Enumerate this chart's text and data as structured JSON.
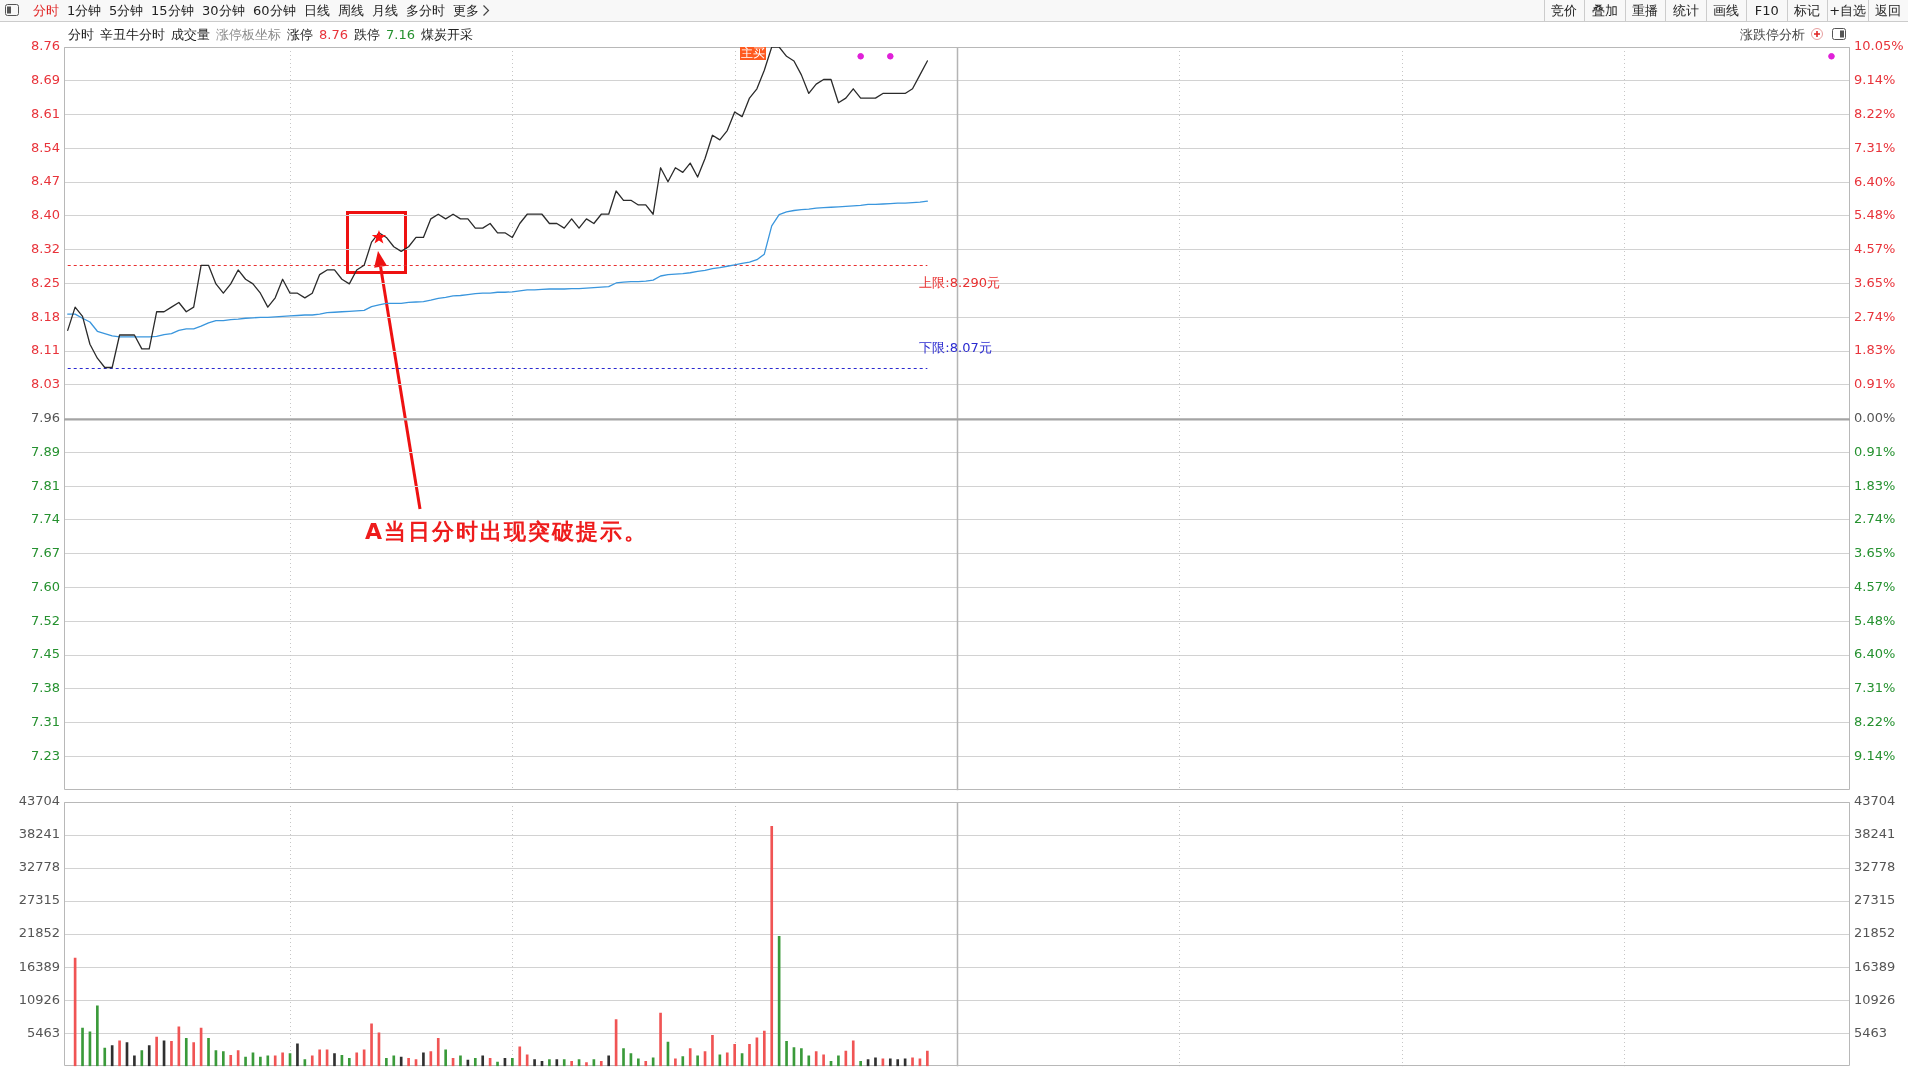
{
  "chart_data": [
    {
      "type": "other",
      "annotations": [
        "分时",
        "1分钟",
        "5分钟",
        "15分钟",
        "30分钟",
        "60分钟",
        "日线",
        "周线",
        "月线",
        "多分时",
        "更多"
      ]
    },
    {
      "type": "other",
      "annotations": [
        "竞价",
        "叠加",
        "重播",
        "统计",
        "画线",
        "F10",
        "标记",
        "+自选",
        "返回"
      ]
    },
    {
      "type": "other",
      "annotations": [
        "分时",
        "辛丑牛分时",
        "成交量",
        "涨停板坐标",
        "涨停",
        "8.76",
        "跌停",
        "7.16",
        "煤炭开采",
        "涨跌停分析"
      ]
    },
    {
      "type": "line",
      "categories": [
        null,
        null,
        null,
        null,
        null,
        null,
        null,
        null,
        null,
        null,
        null,
        null,
        null,
        null,
        null,
        null,
        null,
        null,
        null,
        null,
        null,
        null,
        null,
        null,
        null,
        null,
        null,
        null,
        null,
        null,
        null,
        null,
        null,
        null,
        null,
        null,
        null,
        null,
        null,
        null,
        null,
        null,
        null,
        null,
        null,
        null,
        null,
        null,
        null,
        null,
        null,
        null,
        null,
        null,
        null,
        null,
        null,
        null,
        null,
        null,
        null,
        null,
        null,
        null,
        null,
        null,
        null,
        null,
        null,
        null,
        null,
        null,
        null,
        null,
        null,
        null,
        null,
        null,
        null,
        null,
        null,
        null,
        null,
        null,
        null,
        null,
        null,
        null,
        null,
        null,
        null,
        null,
        null,
        null,
        null,
        null,
        null,
        null,
        null,
        null,
        null,
        null,
        null,
        null,
        null,
        null,
        null,
        null,
        null,
        null,
        null,
        null,
        null,
        null,
        null,
        null,
        null,
        null,
        null,
        null,
        null,
        null,
        null,
        null,
        null,
        null,
        null,
        null,
        null,
        null,
        null,
        null,
        null,
        null,
        null,
        null,
        null,
        null,
        null,
        null,
        null,
        null,
        null,
        null,
        null,
        null,
        null,
        null,
        null,
        null,
        null,
        null,
        null,
        null,
        null,
        null,
        null,
        null,
        null,
        null,
        null,
        null,
        null,
        null,
        null,
        null,
        null,
        null,
        null,
        null,
        null,
        null,
        null,
        null,
        null,
        null,
        null,
        null,
        null,
        null,
        null,
        null,
        null,
        null,
        null,
        null,
        null,
        null,
        null,
        null,
        null,
        null,
        null,
        null,
        null,
        null,
        null,
        null,
        null,
        null,
        null,
        null,
        null,
        null,
        null,
        null,
        null,
        null,
        null,
        null,
        null,
        null,
        null,
        null,
        null,
        null,
        null,
        null,
        null,
        null,
        null,
        null,
        null,
        null,
        null,
        null,
        null,
        null,
        null,
        null,
        null,
        null,
        null,
        null,
        null,
        null,
        null,
        null,
        null,
        null,
        null
      ],
      "series": [
        {
          "color": "#2b2b2b",
          "values": [
            8.15,
            8.2,
            8.18,
            8.12,
            8.09,
            8.07,
            8.07,
            8.14,
            8.14,
            8.14,
            8.11,
            8.11,
            8.19,
            8.19,
            8.2,
            8.21,
            8.19,
            8.2,
            8.29,
            8.29,
            8.25,
            8.23,
            8.25,
            8.28,
            8.26,
            8.25,
            8.23,
            8.2,
            8.22,
            8.26,
            8.23,
            8.23,
            8.22,
            8.23,
            8.27,
            8.28,
            8.28,
            8.26,
            8.25,
            8.28,
            8.29,
            8.34,
            8.36,
            8.35,
            8.33,
            8.32,
            8.33,
            8.35,
            8.35,
            8.39,
            8.4,
            8.39,
            8.4,
            8.39,
            8.39,
            8.37,
            8.37,
            8.38,
            8.36,
            8.36,
            8.35,
            8.38,
            8.4,
            8.4,
            8.4,
            8.38,
            8.38,
            8.37,
            8.39,
            8.37,
            8.39,
            8.38,
            8.4,
            8.4,
            8.45,
            8.43,
            8.43,
            8.42,
            8.42,
            8.4,
            8.5,
            8.47,
            8.5,
            8.49,
            8.51,
            8.48,
            8.52,
            8.57,
            8.56,
            8.58,
            8.62,
            8.61,
            8.65,
            8.67,
            8.71,
            8.76,
            8.76,
            8.74,
            8.73,
            8.7,
            8.66,
            8.68,
            8.69,
            8.69,
            8.64,
            8.65,
            8.67,
            8.65,
            8.65,
            8.65,
            8.66,
            8.66,
            8.66,
            8.66,
            8.67,
            8.7,
            8.73,
            null,
            null,
            null,
            null,
            null,
            null,
            null,
            null,
            null,
            null,
            null,
            null,
            null,
            null,
            null,
            null,
            null,
            null,
            null,
            null,
            null,
            null,
            null,
            null,
            null,
            null,
            null,
            null,
            null,
            null,
            null,
            null,
            null,
            null,
            null,
            null,
            null,
            null,
            null,
            null,
            null,
            null,
            null,
            null,
            null,
            null,
            null,
            null,
            null,
            null,
            null,
            null,
            null,
            null,
            null,
            null,
            null,
            null,
            null,
            null,
            null,
            null,
            null,
            null,
            null,
            null,
            null,
            null,
            null,
            null,
            null,
            null,
            null,
            null,
            null,
            null,
            null,
            null,
            null,
            null,
            null,
            null,
            null,
            null,
            null,
            null,
            null,
            null,
            null,
            null,
            null,
            null,
            null,
            null,
            null,
            null,
            null,
            null,
            null,
            null,
            null,
            null,
            null,
            null,
            null,
            null,
            null,
            null,
            null,
            null,
            null,
            null,
            null,
            null,
            null,
            null,
            null,
            null,
            null,
            null,
            null,
            null,
            null,
            null
          ]
        },
        {
          "color": "#3a96dd",
          "values": [
            8.185,
            8.185,
            8.176,
            8.168,
            8.148,
            8.143,
            8.138,
            8.136,
            8.136,
            8.136,
            8.136,
            8.136,
            8.137,
            8.141,
            8.143,
            8.15,
            8.153,
            8.153,
            8.159,
            8.166,
            8.171,
            8.171,
            8.173,
            8.174,
            8.176,
            8.177,
            8.178,
            8.178,
            8.179,
            8.18,
            8.181,
            8.182,
            8.183,
            8.183,
            8.185,
            8.188,
            8.189,
            8.19,
            8.191,
            8.192,
            8.193,
            8.201,
            8.205,
            8.208,
            8.208,
            8.208,
            8.21,
            8.211,
            8.212,
            8.215,
            8.219,
            8.221,
            8.224,
            8.225,
            8.227,
            8.229,
            8.23,
            8.23,
            8.232,
            8.232,
            8.233,
            8.235,
            8.237,
            8.237,
            8.238,
            8.239,
            8.239,
            8.239,
            8.24,
            8.24,
            8.241,
            8.242,
            8.243,
            8.244,
            8.252,
            8.254,
            8.255,
            8.255,
            8.256,
            8.258,
            8.267,
            8.27,
            8.271,
            8.272,
            8.274,
            8.277,
            8.279,
            8.283,
            8.285,
            8.288,
            8.291,
            8.294,
            8.297,
            8.302,
            8.314,
            8.375,
            8.399,
            8.405,
            8.408,
            8.41,
            8.411,
            8.413,
            8.414,
            8.415,
            8.416,
            8.417,
            8.418,
            8.419,
            8.421,
            8.421,
            8.422,
            8.423,
            8.424,
            8.424,
            8.425,
            8.426,
            8.428,
            null,
            null,
            null,
            null,
            null,
            null,
            null,
            null,
            null,
            null,
            null,
            null,
            null,
            null,
            null,
            null,
            null,
            null,
            null,
            null,
            null,
            null,
            null,
            null,
            null,
            null,
            null,
            null,
            null,
            null,
            null,
            null,
            null,
            null,
            null,
            null,
            null,
            null,
            null,
            null,
            null,
            null,
            null,
            null,
            null,
            null,
            null,
            null,
            null,
            null,
            null,
            null,
            null,
            null,
            null,
            null,
            null,
            null,
            null,
            null,
            null,
            null,
            null,
            null,
            null,
            null,
            null,
            null,
            null,
            null,
            null,
            null,
            null,
            null,
            null,
            null,
            null,
            null,
            null,
            null,
            null,
            null,
            null,
            null,
            null,
            null,
            null,
            null,
            null,
            null,
            null,
            null,
            null,
            null,
            null,
            null,
            null,
            null,
            null,
            null,
            null,
            null,
            null,
            null,
            null,
            null,
            null,
            null,
            null,
            null,
            null,
            null,
            null,
            null,
            null,
            null,
            null,
            null,
            null,
            null,
            null,
            null,
            null,
            null
          ]
        },
        {
          "type": "scatter",
          "marker": "star",
          "color": "#ff1010",
          "values": [
            null,
            null,
            null,
            null,
            null,
            null,
            null,
            null,
            null,
            null,
            null,
            null,
            null,
            null,
            null,
            null,
            null,
            null,
            null,
            null,
            null,
            null,
            null,
            null,
            null,
            null,
            null,
            null,
            null,
            null,
            null,
            null,
            null,
            null,
            null,
            null,
            null,
            null,
            null,
            null,
            null,
            null,
            8.35,
            null,
            null,
            null,
            null,
            null,
            null,
            null,
            null,
            null,
            null,
            null,
            null,
            null,
            null,
            null,
            null,
            null,
            null,
            null,
            null,
            null,
            null,
            null,
            null,
            null,
            null,
            null,
            null,
            null,
            null,
            null,
            null,
            null,
            null,
            null,
            null,
            null,
            null,
            null,
            null,
            null,
            null,
            null,
            null,
            null,
            null,
            null,
            null,
            null,
            null,
            null,
            null,
            null,
            null,
            null,
            null,
            null,
            null,
            null,
            null,
            null,
            null,
            null,
            null,
            null,
            null,
            null,
            null,
            null,
            null,
            null,
            null,
            null,
            null,
            null,
            null,
            null,
            null,
            null,
            null,
            null,
            null,
            null,
            null,
            null,
            null,
            null,
            null,
            null,
            null,
            null,
            null,
            null,
            null,
            null,
            null,
            null,
            null,
            null,
            null,
            null,
            null,
            null,
            null,
            null,
            null,
            null,
            null,
            null,
            null,
            null,
            null,
            null,
            null,
            null,
            null,
            null,
            null,
            null,
            null,
            null,
            null,
            null,
            null,
            null,
            null,
            null,
            null,
            null,
            null,
            null,
            null,
            null,
            null,
            null,
            null,
            null,
            null,
            null,
            null,
            null,
            null,
            null,
            null,
            null,
            null,
            null,
            null,
            null,
            null,
            null,
            null,
            null,
            null,
            null,
            null,
            null,
            null,
            null,
            null,
            null,
            null,
            null,
            null,
            null,
            null,
            null,
            null,
            null,
            null,
            null,
            null,
            null,
            null,
            null,
            null,
            null,
            null,
            null,
            null,
            null,
            null,
            null,
            null,
            null,
            null,
            null,
            null,
            null,
            null,
            null,
            null,
            null,
            null,
            null,
            null,
            null,
            null
          ]
        },
        {
          "type": "scatter",
          "marker": "circle",
          "color": "#e020d8",
          "values": [
            null,
            null,
            null,
            null,
            null,
            null,
            null,
            null,
            null,
            null,
            null,
            null,
            null,
            null,
            null,
            null,
            null,
            null,
            null,
            null,
            null,
            null,
            null,
            null,
            null,
            null,
            null,
            null,
            null,
            null,
            null,
            null,
            null,
            null,
            null,
            null,
            null,
            null,
            null,
            null,
            null,
            null,
            null,
            null,
            null,
            null,
            null,
            null,
            null,
            null,
            null,
            null,
            null,
            null,
            null,
            null,
            null,
            null,
            null,
            null,
            null,
            null,
            null,
            null,
            null,
            null,
            null,
            null,
            null,
            null,
            null,
            null,
            null,
            null,
            null,
            null,
            null,
            null,
            null,
            null,
            null,
            null,
            null,
            null,
            null,
            null,
            null,
            null,
            null,
            null,
            null,
            null,
            null,
            null,
            null,
            null,
            null,
            null,
            null,
            null,
            null,
            null,
            null,
            null,
            null,
            null,
            null,
            8.74,
            null,
            null,
            null,
            8.74,
            null,
            null,
            null,
            null,
            null,
            null,
            null,
            null,
            null,
            null,
            null,
            null,
            null,
            null,
            null,
            null,
            null,
            null,
            null,
            null,
            null,
            null,
            null,
            null,
            null,
            null,
            null,
            null,
            null,
            null,
            null,
            null,
            null,
            null,
            null,
            null,
            null,
            null,
            null,
            null,
            null,
            null,
            null,
            null,
            null,
            null,
            null,
            null,
            null,
            null,
            null,
            null,
            null,
            null,
            null,
            null,
            null,
            null,
            null,
            null,
            null,
            null,
            null,
            null,
            null,
            null,
            null,
            null,
            null,
            null,
            null,
            null,
            null,
            null,
            null,
            null,
            null,
            null,
            null,
            null,
            null,
            null,
            null,
            null,
            null,
            null,
            null,
            null,
            null,
            null,
            null,
            null,
            null,
            null,
            null,
            null,
            null,
            null,
            null,
            null,
            null,
            null,
            null,
            null,
            null,
            null,
            null,
            null,
            null,
            null,
            null,
            null,
            null,
            null,
            null,
            null,
            null,
            null,
            null,
            null,
            null,
            null,
            null,
            null,
            null,
            null,
            8.74,
            null,
            null
          ]
        }
      ],
      "ylim": [
        7.16,
        8.76
      ],
      "yticks": [
        8.76,
        {
          "value": 8.6873,
          "label": "8.69"
        },
        {
          "value": 8.6145,
          "label": "8.61"
        },
        {
          "value": 8.5418,
          "label": "8.54"
        },
        {
          "value": 8.4691,
          "label": "8.47"
        },
        {
          "value": 8.3964,
          "label": "8.40"
        },
        {
          "value": 8.3236,
          "label": "8.32"
        },
        {
          "value": 8.2509,
          "label": "8.25"
        },
        {
          "value": 8.1782,
          "label": "8.18"
        },
        {
          "value": 8.1055,
          "label": "8.11"
        },
        {
          "value": 8.0327,
          "label": "8.03"
        },
        7.96,
        {
          "value": 7.8873,
          "label": "7.89"
        },
        {
          "value": 7.8145,
          "label": "7.81"
        },
        {
          "value": 7.7418,
          "label": "7.74"
        },
        {
          "value": 7.6691,
          "label": "7.67"
        },
        {
          "value": 7.5964,
          "label": "7.60"
        },
        {
          "value": 7.5236,
          "label": "7.52"
        },
        {
          "value": 7.4509,
          "label": "7.45"
        },
        {
          "value": 7.3782,
          "label": "7.38"
        },
        {
          "value": 7.3055,
          "label": "7.31"
        },
        {
          "value": 7.2327,
          "label": "7.23"
        }
      ],
      "y2lim": [
        -10.05,
        10.05
      ],
      "y2ticks": [
        {
          "value": 10.05,
          "label": "10.05%"
        },
        {
          "value": 9.1364,
          "label": "9.14%"
        },
        {
          "value": 8.2227,
          "label": "8.22%"
        },
        {
          "value": 7.3091,
          "label": "7.31%"
        },
        {
          "value": 6.3955,
          "label": "6.40%"
        },
        {
          "value": 5.4818,
          "label": "5.48%"
        },
        {
          "value": 4.5682,
          "label": "4.57%"
        },
        {
          "value": 3.6545,
          "label": "3.65%"
        },
        {
          "value": 2.7409,
          "label": "2.74%"
        },
        {
          "value": 1.8273,
          "label": "1.83%"
        },
        {
          "value": 0.9136,
          "label": "0.91%"
        },
        {
          "value": 0,
          "label": "0.00%"
        },
        {
          "value": -0.9136,
          "label": "0.91%"
        },
        {
          "value": -1.8273,
          "label": "1.83%"
        },
        {
          "value": -2.7409,
          "label": "2.74%"
        },
        {
          "value": -3.6545,
          "label": "3.65%"
        },
        {
          "value": -4.5682,
          "label": "4.57%"
        },
        {
          "value": -5.4818,
          "label": "5.48%"
        },
        {
          "value": -6.3955,
          "label": "6.40%"
        },
        {
          "value": -7.3091,
          "label": "7.31%"
        },
        {
          "value": -8.2227,
          "label": "8.22%"
        },
        {
          "value": -9.1364,
          "label": "9.14%"
        }
      ],
      "ref_lines": [
        {
          "axis": "y",
          "value": 8.29,
          "label": "上限:8.290元",
          "color": "#e83030",
          "line_style": "dashed"
        },
        {
          "axis": "y",
          "value": 8.07,
          "label": "下限:8.07元",
          "color": "#2a2ad0",
          "line_style": "dashed"
        },
        {
          "axis": "y",
          "value": 7.96,
          "color": "#a4a4a4"
        }
      ],
      "annotations": [
        "A当日分时出现突破提示。",
        "主买"
      ],
      "grid": true
    },
    {
      "type": "bar",
      "categories": [
        null,
        null,
        null,
        null,
        null,
        null,
        null,
        null,
        null,
        null,
        null,
        null,
        null,
        null,
        null,
        null,
        null,
        null,
        null,
        null,
        null,
        null,
        null,
        null,
        null,
        null,
        null,
        null,
        null,
        null,
        null,
        null,
        null,
        null,
        null,
        null,
        null,
        null,
        null,
        null,
        null,
        null,
        null,
        null,
        null,
        null,
        null,
        null,
        null,
        null,
        null,
        null,
        null,
        null,
        null,
        null,
        null,
        null,
        null,
        null,
        null,
        null,
        null,
        null,
        null,
        null,
        null,
        null,
        null,
        null,
        null,
        null,
        null,
        null,
        null,
        null,
        null,
        null,
        null,
        null,
        null,
        null,
        null,
        null,
        null,
        null,
        null,
        null,
        null,
        null,
        null,
        null,
        null,
        null,
        null,
        null,
        null,
        null,
        null,
        null,
        null,
        null,
        null,
        null,
        null,
        null,
        null,
        null,
        null,
        null,
        null,
        null,
        null,
        null,
        null,
        null,
        null,
        null,
        null,
        null,
        null,
        null,
        null,
        null,
        null,
        null,
        null,
        null,
        null,
        null,
        null,
        null,
        null,
        null,
        null,
        null,
        null,
        null,
        null,
        null,
        null,
        null,
        null,
        null,
        null,
        null,
        null,
        null,
        null,
        null,
        null,
        null,
        null,
        null,
        null,
        null,
        null,
        null,
        null,
        null,
        null,
        null,
        null,
        null,
        null,
        null,
        null,
        null,
        null,
        null,
        null,
        null,
        null,
        null,
        null,
        null,
        null,
        null,
        null,
        null,
        null,
        null,
        null,
        null,
        null,
        null,
        null,
        null,
        null,
        null,
        null,
        null,
        null,
        null,
        null,
        null,
        null,
        null,
        null,
        null,
        null,
        null,
        null,
        null,
        null,
        null,
        null,
        null,
        null,
        null,
        null,
        null,
        null,
        null,
        null,
        null,
        null,
        null,
        null,
        null,
        null,
        null,
        null,
        null,
        null,
        null,
        null,
        null,
        null,
        null,
        null,
        null,
        null,
        null,
        null,
        null,
        null,
        null,
        null,
        null,
        null
      ],
      "values": [
        null,
        17900,
        6300,
        5700,
        10000,
        3000,
        3400,
        4200,
        3900,
        1700,
        2600,
        3400,
        4800,
        4200,
        4100,
        6500,
        4600,
        3900,
        6300,
        4600,
        2600,
        2400,
        1800,
        2600,
        1500,
        2200,
        1500,
        1700,
        1700,
        2200,
        2100,
        3700,
        1100,
        1700,
        2700,
        2700,
        2100,
        1800,
        1300,
        2200,
        2700,
        7000,
        5500,
        1300,
        1700,
        1500,
        1300,
        1100,
        2200,
        2400,
        4600,
        2700,
        1300,
        1700,
        1000,
        1300,
        1700,
        1300,
        700,
        1300,
        1300,
        3200,
        1900,
        1100,
        800,
        1100,
        1100,
        1100,
        800,
        1100,
        600,
        1100,
        800,
        1700,
        7700,
        2900,
        2100,
        1200,
        800,
        1400,
        8800,
        4000,
        1200,
        1600,
        2900,
        1700,
        2400,
        5100,
        1900,
        2200,
        3600,
        2100,
        3600,
        4700,
        5800,
        39700,
        21500,
        4100,
        3100,
        2900,
        1700,
        2400,
        1900,
        800,
        1700,
        2500,
        4200,
        800,
        1100,
        1400,
        1200,
        1200,
        1100,
        1200,
        1400,
        1200,
        2500,
        null,
        null,
        null,
        null,
        null,
        null,
        null,
        null,
        null,
        null,
        null,
        null,
        null,
        null,
        null,
        null,
        null,
        null,
        null,
        null,
        null,
        null,
        null,
        null,
        null,
        null,
        null,
        null,
        null,
        null,
        null,
        null,
        null,
        null,
        null,
        null,
        null,
        null,
        null,
        null,
        null,
        null,
        null,
        null,
        null,
        null,
        null,
        null,
        null,
        null,
        null,
        null,
        null,
        null,
        null,
        null,
        null,
        null,
        null,
        null,
        null,
        null,
        null,
        null,
        null,
        null,
        null,
        null,
        null,
        null,
        null,
        null,
        null,
        null,
        null,
        null,
        null,
        null,
        null,
        null,
        null,
        null,
        null,
        null,
        null,
        null,
        null,
        null,
        null,
        null,
        null,
        null,
        null,
        null,
        null,
        null,
        null,
        null,
        null,
        null,
        null,
        null,
        null,
        null,
        null,
        null,
        null,
        null,
        null,
        null,
        null,
        null,
        null,
        null,
        null,
        null,
        null,
        null,
        null,
        null,
        null,
        null,
        null,
        null
      ],
      "colors": [
        null,
        "#f05454",
        "#3a9a3a",
        "#3a9a3a",
        "#3a9a3a",
        "#3a9a3a",
        "#303030",
        "#f05454",
        "#303030",
        "#303030",
        "#3a9a3a",
        "#303030",
        "#f05454",
        "#303030",
        "#f05454",
        "#f05454",
        "#3a9a3a",
        "#f05454",
        "#f05454",
        "#3a9a3a",
        "#3a9a3a",
        "#3a9a3a",
        "#f05454",
        "#f05454",
        "#3a9a3a",
        "#3a9a3a",
        "#3a9a3a",
        "#3a9a3a",
        "#f05454",
        "#f05454",
        "#3a9a3a",
        "#303030",
        "#3a9a3a",
        "#f05454",
        "#f05454",
        "#f05454",
        "#303030",
        "#3a9a3a",
        "#3a9a3a",
        "#f05454",
        "#f05454",
        "#f05454",
        "#f05454",
        "#3a9a3a",
        "#3a9a3a",
        "#303030",
        "#f05454",
        "#f05454",
        "#303030",
        "#f05454",
        "#f05454",
        "#3a9a3a",
        "#f05454",
        "#3a9a3a",
        "#303030",
        "#3a9a3a",
        "#303030",
        "#f05454",
        "#3a9a3a",
        "#303030",
        "#3a9a3a",
        "#f05454",
        "#f05454",
        "#303030",
        "#303030",
        "#3a9a3a",
        "#303030",
        "#3a9a3a",
        "#f05454",
        "#3a9a3a",
        "#f05454",
        "#3a9a3a",
        "#f05454",
        "#303030",
        "#f05454",
        "#3a9a3a",
        "#3a9a3a",
        "#3a9a3a",
        "#f05454",
        "#3a9a3a",
        "#f05454",
        "#3a9a3a",
        "#f05454",
        "#3a9a3a",
        "#f05454",
        "#3a9a3a",
        "#f05454",
        "#f05454",
        "#3a9a3a",
        "#f05454",
        "#f05454",
        "#3a9a3a",
        "#f05454",
        "#f05454",
        "#f05454",
        "#f05454",
        "#3a9a3a",
        "#3a9a3a",
        "#3a9a3a",
        "#3a9a3a",
        "#3a9a3a",
        "#f05454",
        "#f05454",
        "#3a9a3a",
        "#3a9a3a",
        "#f05454",
        "#f05454",
        "#3a9a3a",
        "#303030",
        "#303030",
        "#f05454",
        "#303030",
        "#303030",
        "#303030",
        "#f05454",
        "#f05454",
        "#f05454",
        null,
        null,
        null,
        null,
        null,
        null,
        null,
        null,
        null,
        null,
        null,
        null,
        null,
        null,
        null,
        null,
        null,
        null,
        null,
        null,
        null,
        null,
        null,
        null,
        null,
        null,
        null,
        null,
        null,
        null,
        null,
        null,
        null,
        null,
        null,
        null,
        null,
        null,
        null,
        null,
        null,
        null,
        null,
        null,
        null,
        null,
        null,
        null,
        null,
        null,
        null,
        null,
        null,
        null,
        null,
        null,
        null,
        null,
        null,
        null,
        null,
        null,
        null,
        null,
        null,
        null,
        null,
        null,
        null,
        null,
        null,
        null,
        null,
        null,
        null,
        null,
        null,
        null,
        null,
        null,
        null,
        null,
        null,
        null,
        null,
        null,
        null,
        null,
        null,
        null,
        null,
        null,
        null,
        null,
        null,
        null,
        null,
        null,
        null,
        null,
        null,
        null,
        null,
        null,
        null,
        null,
        null,
        null,
        null,
        null,
        null,
        null,
        null,
        null,
        null,
        null,
        null,
        null,
        null,
        null,
        null,
        null,
        null,
        null
      ],
      "ylim": [
        0,
        43704
      ],
      "yticks": [
        5463,
        10926,
        16389,
        21852,
        27315,
        32778,
        38241,
        43704
      ],
      "y2lim": [
        0,
        43704
      ],
      "y2ticks": [
        5463,
        10926,
        16389,
        21852,
        27315,
        32778,
        38241,
        43704
      ],
      "grid": true
    }
  ]
}
